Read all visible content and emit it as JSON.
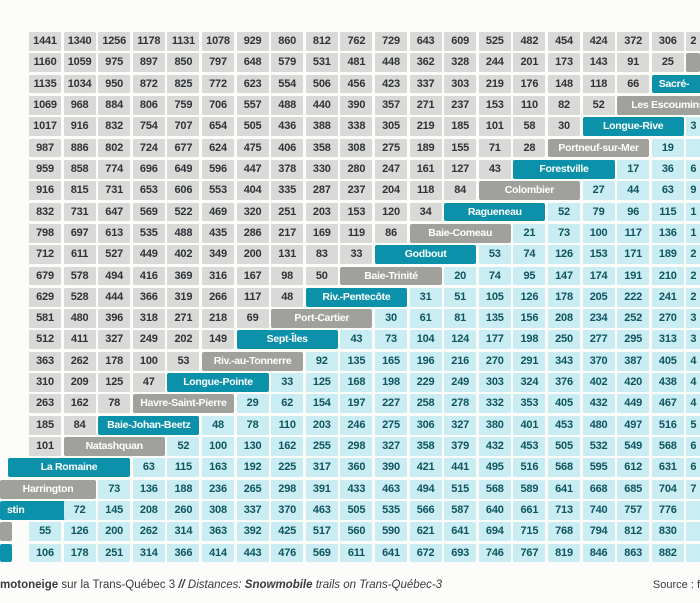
{
  "table": {
    "description_colors": {
      "gray_cell_bg": "#d9d9d7",
      "cyan_cell_bg": "#c9edf3",
      "teal_name_bg": "#0c91ab",
      "gray_name_bg": "#a0a09d",
      "left_number_text": "#2f3338",
      "right_number_text": "#0e5560",
      "name_text": "#ffffff",
      "page_bg": "#fcfcfb"
    },
    "rows": [
      {
        "left": [
          "1441",
          "1340",
          "1256",
          "1178",
          "1131",
          "1078",
          "929",
          "860",
          "812",
          "762",
          "729",
          "643",
          "609",
          "525",
          "482",
          "454",
          "424",
          "372",
          "306"
        ],
        "partial": "2",
        "partialType": "left"
      },
      {
        "left": [
          "1160",
          "1059",
          "975",
          "897",
          "850",
          "797",
          "648",
          "579",
          "531",
          "481",
          "448",
          "362",
          "328",
          "244",
          "201",
          "173",
          "143",
          "91",
          "25"
        ],
        "name": "",
        "nameType": "gray",
        "nameX": 686.4,
        "nameW": 14
      },
      {
        "left": [
          "1135",
          "1034",
          "950",
          "872",
          "825",
          "772",
          "623",
          "554",
          "506",
          "456",
          "423",
          "337",
          "303",
          "219",
          "176",
          "148",
          "118",
          "66"
        ],
        "name": "Sacré-",
        "nameType": "teal",
        "nameCol": 19,
        "nameAlign": "left"
      },
      {
        "left": [
          "1069",
          "968",
          "884",
          "806",
          "759",
          "706",
          "557",
          "488",
          "440",
          "390",
          "357",
          "271",
          "237",
          "153",
          "110",
          "82",
          "52"
        ],
        "name": "Les Escoumins",
        "nameType": "gray",
        "nameCol": 18
      },
      {
        "left": [
          "1017",
          "916",
          "832",
          "754",
          "707",
          "654",
          "505",
          "436",
          "388",
          "338",
          "305",
          "219",
          "185",
          "101",
          "58",
          "30"
        ],
        "name": "Longue-Rive",
        "nameType": "teal",
        "nameCol": 17,
        "partial": "3",
        "partialType": "right"
      },
      {
        "left": [
          "987",
          "886",
          "802",
          "724",
          "677",
          "624",
          "475",
          "406",
          "358",
          "308",
          "275",
          "189",
          "155",
          "71",
          "28"
        ],
        "name": "Portneuf-sur-Mer",
        "nameType": "gray",
        "nameCol": 16,
        "right": [
          "19"
        ],
        "partial": "",
        "partialType": "right"
      },
      {
        "left": [
          "959",
          "858",
          "774",
          "696",
          "649",
          "596",
          "447",
          "378",
          "330",
          "280",
          "247",
          "161",
          "127",
          "43"
        ],
        "name": "Forestville",
        "nameType": "teal",
        "nameCol": 15,
        "right": [
          "17",
          "36"
        ],
        "partial": "6",
        "partialType": "right"
      },
      {
        "left": [
          "916",
          "815",
          "731",
          "653",
          "606",
          "553",
          "404",
          "335",
          "287",
          "237",
          "204",
          "118",
          "84"
        ],
        "name": "Colombier",
        "nameType": "gray",
        "nameCol": 14,
        "right": [
          "27",
          "44",
          "63"
        ],
        "partial": "9",
        "partialType": "right"
      },
      {
        "left": [
          "832",
          "731",
          "647",
          "569",
          "522",
          "469",
          "320",
          "251",
          "203",
          "153",
          "120",
          "34"
        ],
        "name": "Ragueneau",
        "nameType": "teal",
        "nameCol": 13,
        "right": [
          "52",
          "79",
          "96",
          "115"
        ],
        "partial": "1",
        "partialType": "right"
      },
      {
        "left": [
          "798",
          "697",
          "613",
          "535",
          "488",
          "435",
          "286",
          "217",
          "169",
          "119",
          "86"
        ],
        "name": "Baie-Comeau",
        "nameType": "gray",
        "nameCol": 12,
        "right": [
          "21",
          "73",
          "100",
          "117",
          "136"
        ],
        "partial": "1",
        "partialType": "right"
      },
      {
        "left": [
          "712",
          "611",
          "527",
          "449",
          "402",
          "349",
          "200",
          "131",
          "83",
          "33"
        ],
        "name": "Godbout",
        "nameType": "teal",
        "nameCol": 11,
        "right": [
          "53",
          "74",
          "126",
          "153",
          "171",
          "189"
        ],
        "partial": "2",
        "partialType": "right"
      },
      {
        "left": [
          "679",
          "578",
          "494",
          "416",
          "369",
          "316",
          "167",
          "98",
          "50"
        ],
        "name": "Baie-Trinité",
        "nameType": "gray",
        "nameCol": 10,
        "right": [
          "20",
          "74",
          "95",
          "147",
          "174",
          "191",
          "210"
        ],
        "partial": "2",
        "partialType": "right"
      },
      {
        "left": [
          "629",
          "528",
          "444",
          "366",
          "319",
          "266",
          "117",
          "48"
        ],
        "name": "Riv.-Pentecôte",
        "nameType": "teal",
        "nameCol": 9,
        "right": [
          "31",
          "51",
          "105",
          "126",
          "178",
          "205",
          "222",
          "241"
        ],
        "partial": "2",
        "partialType": "right"
      },
      {
        "left": [
          "581",
          "480",
          "396",
          "318",
          "271",
          "218",
          "69"
        ],
        "name": "Port-Cartier",
        "nameType": "gray",
        "nameCol": 8,
        "right": [
          "30",
          "61",
          "81",
          "135",
          "156",
          "208",
          "234",
          "252",
          "270"
        ],
        "partial": "3",
        "partialType": "right"
      },
      {
        "left": [
          "512",
          "411",
          "327",
          "249",
          "202",
          "149"
        ],
        "name": "Sept-Îles",
        "nameType": "teal",
        "nameCol": 7,
        "right": [
          "43",
          "73",
          "104",
          "124",
          "177",
          "198",
          "250",
          "277",
          "295",
          "313"
        ],
        "partial": "3",
        "partialType": "right"
      },
      {
        "left": [
          "363",
          "262",
          "178",
          "100",
          "53"
        ],
        "name": "Riv.-au-Tonnerre",
        "nameType": "gray",
        "nameCol": 6,
        "right": [
          "92",
          "135",
          "165",
          "196",
          "216",
          "270",
          "291",
          "343",
          "370",
          "387",
          "405"
        ],
        "partial": "4",
        "partialType": "right"
      },
      {
        "left": [
          "310",
          "209",
          "125",
          "47"
        ],
        "name": "Longue-Pointe",
        "nameType": "teal",
        "nameCol": 5,
        "right": [
          "33",
          "125",
          "168",
          "198",
          "229",
          "249",
          "303",
          "324",
          "376",
          "402",
          "420",
          "438"
        ],
        "partial": "4",
        "partialType": "right"
      },
      {
        "left": [
          "263",
          "162",
          "78"
        ],
        "name": "Havre-Saint-Pierre",
        "nameType": "gray",
        "nameCol": 4,
        "right": [
          "29",
          "62",
          "154",
          "197",
          "227",
          "258",
          "278",
          "332",
          "353",
          "405",
          "432",
          "449",
          "467"
        ],
        "partial": "4",
        "partialType": "right"
      },
      {
        "left": [
          "185",
          "84"
        ],
        "name": "Baie-Johan-Beetz",
        "nameType": "teal",
        "nameCol": 3,
        "right": [
          "48",
          "78",
          "110",
          "203",
          "246",
          "275",
          "306",
          "327",
          "380",
          "401",
          "453",
          "480",
          "497",
          "516"
        ],
        "partial": "5",
        "partialType": "right"
      },
      {
        "left": [
          "101"
        ],
        "name": "Natashquan",
        "nameType": "gray",
        "nameCol": 2,
        "right": [
          "52",
          "100",
          "130",
          "162",
          "255",
          "298",
          "327",
          "358",
          "379",
          "432",
          "453",
          "505",
          "532",
          "549",
          "568"
        ],
        "partial": "6",
        "partialType": "right"
      },
      {
        "left": [],
        "name": "La Romaine",
        "nameType": "teal",
        "nameX": 8,
        "nameW": 122,
        "rightCol": 4,
        "right": [
          "63",
          "115",
          "163",
          "192",
          "225",
          "317",
          "360",
          "390",
          "421",
          "441",
          "495",
          "516",
          "568",
          "595",
          "612",
          "631"
        ],
        "partial": "6",
        "partialType": "right"
      },
      {
        "left": [],
        "name": "Harrington",
        "nameType": "gray",
        "nameX": 0,
        "nameW": 96,
        "rightCol": 3,
        "right": [
          "73",
          "136",
          "188",
          "236",
          "265",
          "298",
          "391",
          "433",
          "463",
          "494",
          "515",
          "568",
          "589",
          "641",
          "668",
          "685",
          "704"
        ],
        "partial": "7",
        "partialType": "right"
      },
      {
        "left": [],
        "name": "stin",
        "nameType": "teal",
        "nameX": 0,
        "nameW": 61,
        "nameAlign": "left",
        "rightCol": 2,
        "right": [
          "72",
          "145",
          "208",
          "260",
          "308",
          "337",
          "370",
          "463",
          "505",
          "535",
          "566",
          "587",
          "640",
          "661",
          "713",
          "740",
          "757",
          "776"
        ],
        "partial": "",
        "partialType": "right"
      },
      {
        "left": [],
        "name": "",
        "nameType": "gray",
        "nameX": 0,
        "nameW": 12,
        "rightCol": 1,
        "right": [
          "55",
          "126",
          "200",
          "262",
          "314",
          "363",
          "392",
          "425",
          "517",
          "560",
          "590",
          "621",
          "641",
          "694",
          "715",
          "768",
          "794",
          "812",
          "830"
        ],
        "partial": "",
        "partialType": "right"
      },
      {
        "left": [],
        "name": "",
        "nameType": "teal",
        "nameX": 0,
        "nameW": 12,
        "rightCol": 1,
        "right": [
          "106",
          "178",
          "251",
          "314",
          "366",
          "414",
          "443",
          "476",
          "569",
          "611",
          "641",
          "672",
          "693",
          "746",
          "767",
          "819",
          "846",
          "863",
          "882"
        ],
        "partial": "",
        "partialType": "right"
      }
    ]
  },
  "caption": {
    "segments": [
      {
        "text": "motoneige",
        "style": "bold"
      },
      {
        "text": " sur la Trans-Québec 3 ",
        "style": "normal"
      },
      {
        "text": "// ",
        "style": "bold-italic"
      },
      {
        "text": "Distances: ",
        "style": "italic"
      },
      {
        "text": "Snowmobile",
        "style": "bold-italic"
      },
      {
        "text": " trails on Trans-Québec-3",
        "style": "italic"
      }
    ],
    "source": "Source : f"
  }
}
